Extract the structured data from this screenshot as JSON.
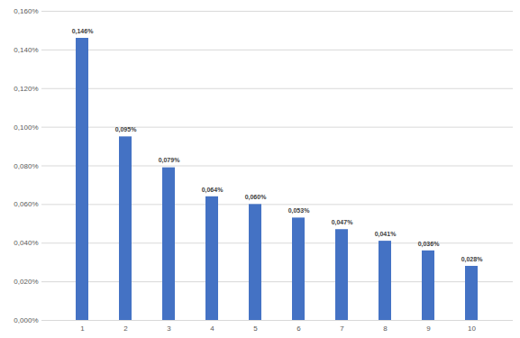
{
  "chart_data": {
    "type": "bar",
    "categories": [
      "1",
      "2",
      "3",
      "4",
      "5",
      "6",
      "7",
      "8",
      "9",
      "10"
    ],
    "values": [
      0.146,
      0.095,
      0.079,
      0.064,
      0.06,
      0.053,
      0.047,
      0.041,
      0.036,
      0.028
    ],
    "value_labels": [
      "0,146%",
      "0,095%",
      "0,079%",
      "0,064%",
      "0,060%",
      "0,053%",
      "0,047%",
      "0,041%",
      "0,036%",
      "0,028%"
    ],
    "data_labels": true,
    "color": "#4472c4",
    "ylim": [
      0,
      0.16
    ],
    "yticks": [
      {
        "value": 0,
        "label": "0,000%"
      },
      {
        "value": 0.02,
        "label": "0,020%"
      },
      {
        "value": 0.04,
        "label": "0,040%"
      },
      {
        "value": 0.06,
        "label": "0,060%"
      },
      {
        "value": 0.08,
        "label": "0,080%"
      },
      {
        "value": 0.1,
        "label": "0,100%"
      },
      {
        "value": 0.12,
        "label": "0,120%"
      },
      {
        "value": 0.14,
        "label": "0,140%"
      },
      {
        "value": 0.16,
        "label": "0,160%"
      }
    ],
    "grid": true
  }
}
